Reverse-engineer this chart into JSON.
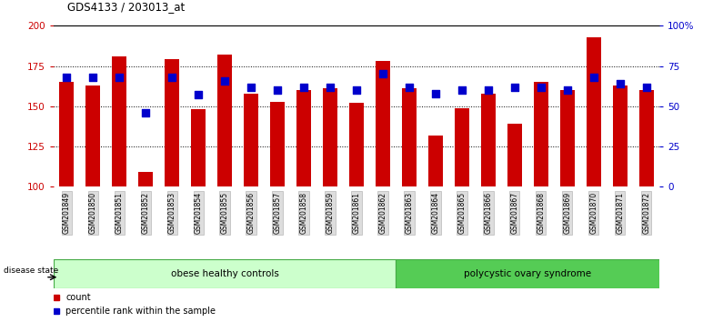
{
  "title": "GDS4133 / 203013_at",
  "samples": [
    "GSM201849",
    "GSM201850",
    "GSM201851",
    "GSM201852",
    "GSM201853",
    "GSM201854",
    "GSM201855",
    "GSM201856",
    "GSM201857",
    "GSM201858",
    "GSM201859",
    "GSM201861",
    "GSM201862",
    "GSM201863",
    "GSM201864",
    "GSM201865",
    "GSM201866",
    "GSM201867",
    "GSM201868",
    "GSM201869",
    "GSM201870",
    "GSM201871",
    "GSM201872"
  ],
  "bar_values": [
    165,
    163,
    181,
    109,
    179,
    148,
    182,
    158,
    153,
    160,
    161,
    152,
    178,
    161,
    132,
    149,
    158,
    139,
    165,
    160,
    193,
    163,
    160
  ],
  "dot_values": [
    68,
    68,
    68,
    46,
    68,
    57,
    66,
    62,
    60,
    62,
    62,
    60,
    70,
    62,
    58,
    60,
    60,
    62,
    62,
    60,
    68,
    64,
    62
  ],
  "group1_count": 13,
  "group2_count": 10,
  "group1_label": "obese healthy controls",
  "group2_label": "polycystic ovary syndrome",
  "disease_state_label": "disease state",
  "ymin": 100,
  "ymax": 200,
  "yticks": [
    100,
    125,
    150,
    175,
    200
  ],
  "right_yticks": [
    0,
    25,
    50,
    75,
    100
  ],
  "right_ytick_labels": [
    "0",
    "25",
    "50",
    "75",
    "100%"
  ],
  "bar_color": "#cc0000",
  "dot_color": "#0000cc",
  "bg_color": "#ffffff",
  "group1_fill": "#ccffcc",
  "group2_fill": "#55cc55",
  "legend_count_label": "count",
  "legend_pct_label": "percentile rank within the sample",
  "left_axis_color": "#cc0000",
  "right_axis_color": "#0000cc"
}
